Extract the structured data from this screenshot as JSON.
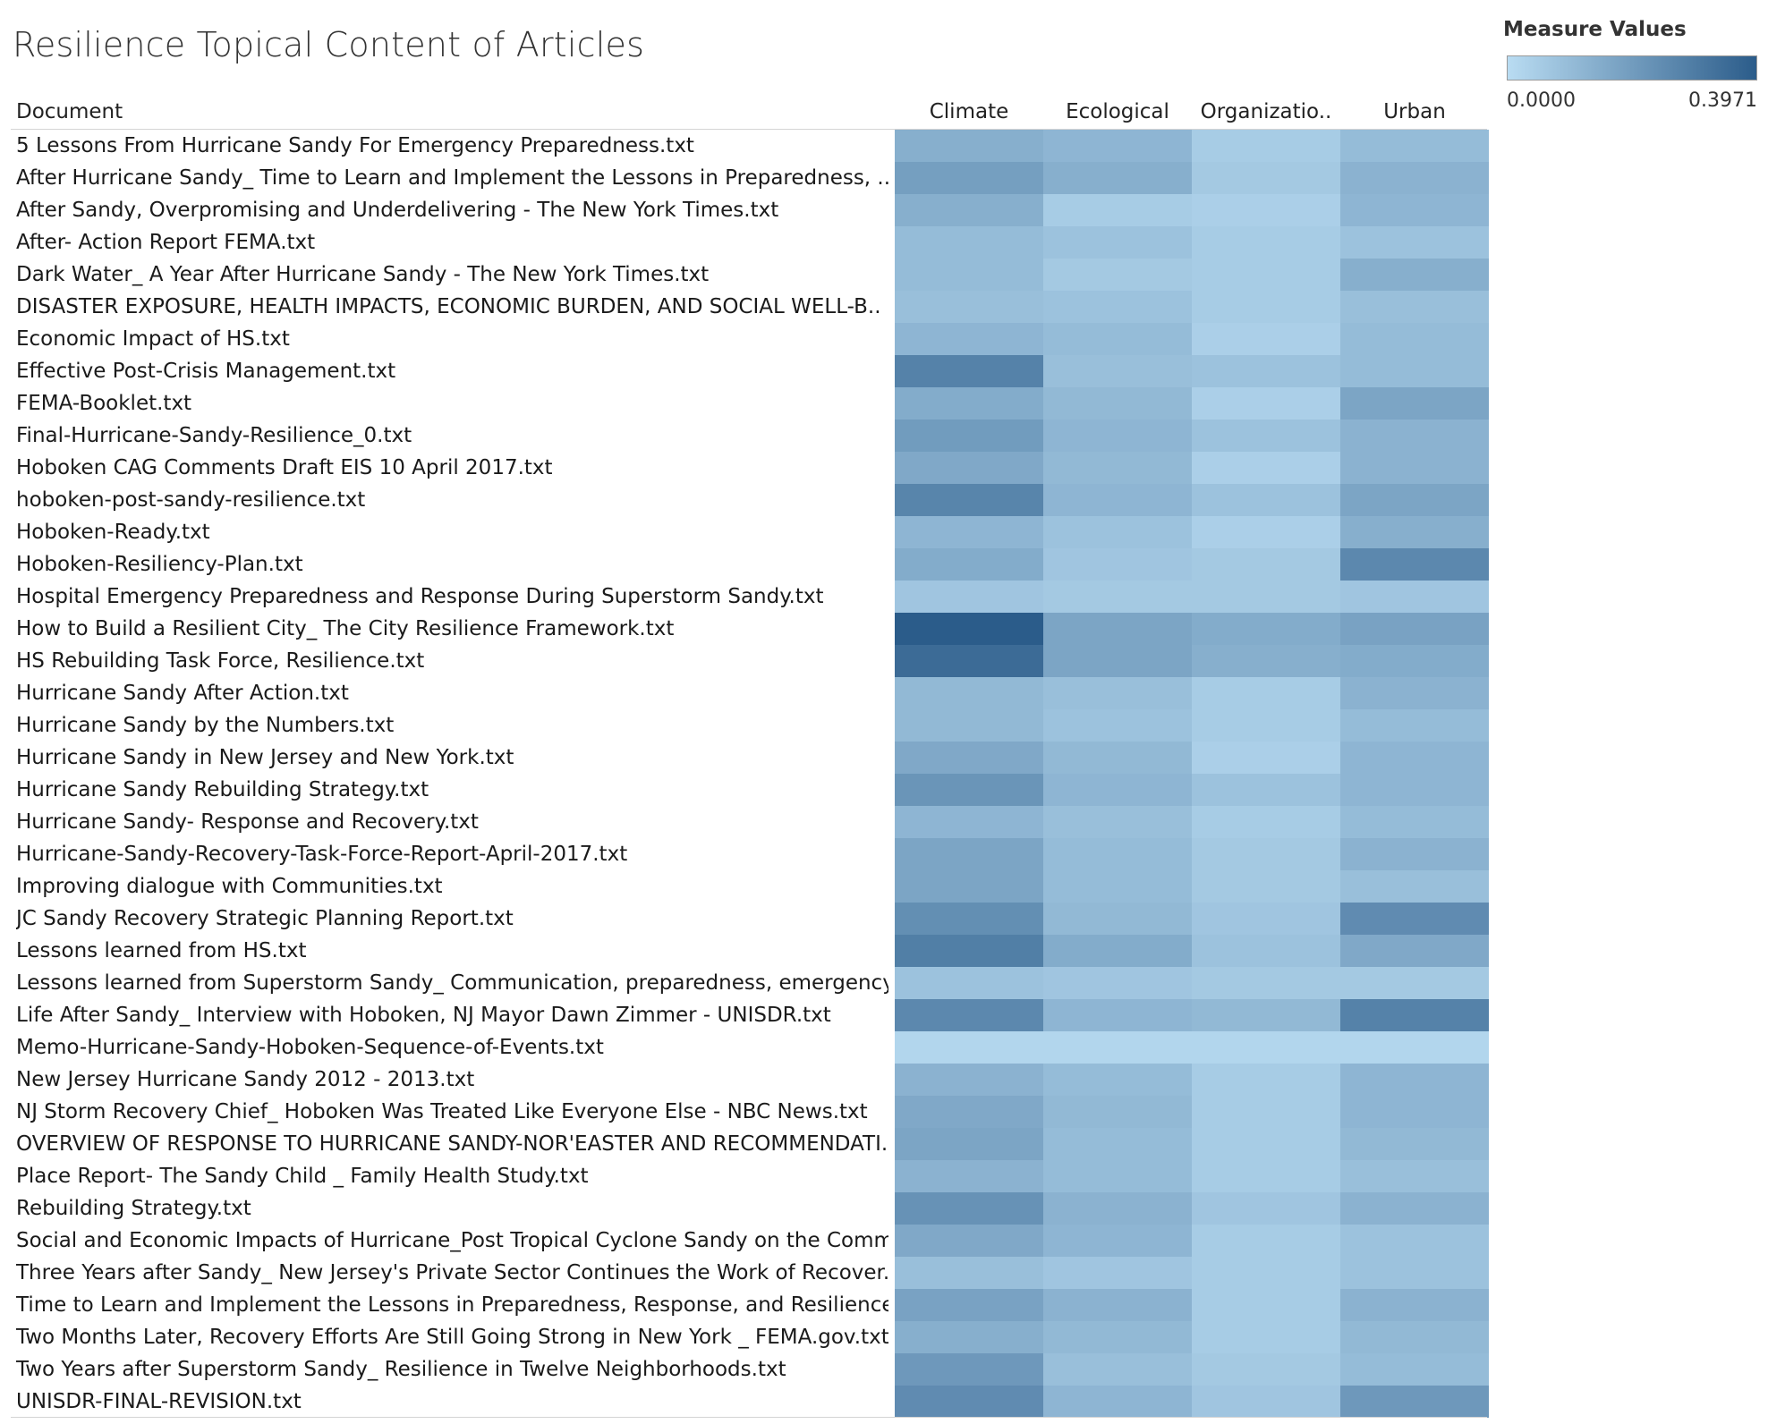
{
  "chart_data": {
    "type": "heatmap",
    "title": "Resilience Topical Content of Articles",
    "row_header": "Document",
    "columns": [
      "Climate",
      "Ecological",
      "Organizatio..",
      "Urban"
    ],
    "legend": {
      "title": "Measure Values",
      "min_label": "0.0000",
      "max_label": "0.3971",
      "min": 0.0,
      "max": 0.3971,
      "color_low": "#b9dcf2",
      "color_high": "#2b5c8a",
      "placement": "top-right"
    },
    "rows": [
      {
        "label": "5 Lessons From Hurricane Sandy For Emergency Preparedness.txt",
        "values": [
          0.14,
          0.12,
          0.05,
          0.1
        ]
      },
      {
        "label": "After Hurricane Sandy_ Time to Learn and Implement the  Lessons in Preparedness,  ..",
        "values": [
          0.19,
          0.14,
          0.06,
          0.13
        ]
      },
      {
        "label": "After Sandy, Overpromising and Underdelivering - The New York Times.txt",
        "values": [
          0.14,
          0.05,
          0.04,
          0.12
        ]
      },
      {
        "label": "After- Action Report FEMA.txt",
        "values": [
          0.1,
          0.08,
          0.05,
          0.08
        ]
      },
      {
        "label": "Dark Water_ A Year After Hurricane Sandy - The New York Times.txt",
        "values": [
          0.1,
          0.06,
          0.05,
          0.14
        ]
      },
      {
        "label": "DISASTER EXPOSURE,  HEALTH IMPACTS,  ECONOMIC BURDEN,  AND SOCIAL  WELL-B..",
        "values": [
          0.09,
          0.08,
          0.05,
          0.09
        ]
      },
      {
        "label": "Economic Impact of HS.txt",
        "values": [
          0.12,
          0.1,
          0.04,
          0.1
        ]
      },
      {
        "label": "Effective Post-Crisis Management.txt",
        "values": [
          0.28,
          0.09,
          0.08,
          0.1
        ]
      },
      {
        "label": "FEMA-Booklet.txt",
        "values": [
          0.15,
          0.11,
          0.04,
          0.17
        ]
      },
      {
        "label": "Final-Hurricane-Sandy-Resilience_0.txt",
        "values": [
          0.2,
          0.12,
          0.08,
          0.13
        ]
      },
      {
        "label": "Hoboken CAG Comments Draft EIS 10 April 2017.txt",
        "values": [
          0.16,
          0.11,
          0.04,
          0.13
        ]
      },
      {
        "label": "hoboken-post-sandy-resilience.txt",
        "values": [
          0.27,
          0.12,
          0.08,
          0.17
        ]
      },
      {
        "label": "Hoboken-Ready.txt",
        "values": [
          0.12,
          0.08,
          0.04,
          0.14
        ]
      },
      {
        "label": "Hoboken-Resiliency-Plan.txt",
        "values": [
          0.15,
          0.07,
          0.06,
          0.26
        ]
      },
      {
        "label": "Hospital Emergency Preparedness and Response During Superstorm Sandy.txt",
        "values": [
          0.07,
          0.06,
          0.06,
          0.07
        ]
      },
      {
        "label": "How to Build a Resilient City_ The  City Resilience Framework.txt",
        "values": [
          0.3971,
          0.17,
          0.15,
          0.18
        ]
      },
      {
        "label": "HS Rebuilding Task Force, Resilience.txt",
        "values": [
          0.35,
          0.17,
          0.14,
          0.15
        ]
      },
      {
        "label": "Hurricane Sandy After Action.txt",
        "values": [
          0.11,
          0.09,
          0.05,
          0.13
        ]
      },
      {
        "label": "Hurricane Sandy by the Numbers.txt",
        "values": [
          0.11,
          0.08,
          0.05,
          0.1
        ]
      },
      {
        "label": "Hurricane Sandy in  New Jersey and New York.txt",
        "values": [
          0.16,
          0.11,
          0.04,
          0.12
        ]
      },
      {
        "label": "Hurricane Sandy Rebuilding Strategy.txt",
        "values": [
          0.22,
          0.12,
          0.08,
          0.12
        ]
      },
      {
        "label": "Hurricane Sandy- Response and Recovery.txt",
        "values": [
          0.12,
          0.09,
          0.05,
          0.1
        ]
      },
      {
        "label": "Hurricane-Sandy-Recovery-Task-Force-Report-April-2017.txt",
        "values": [
          0.17,
          0.1,
          0.06,
          0.13
        ]
      },
      {
        "label": "Improving dialogue with Communities.txt",
        "values": [
          0.17,
          0.1,
          0.06,
          0.09
        ]
      },
      {
        "label": "JC Sandy Recovery Strategic Planning Report.txt",
        "values": [
          0.24,
          0.11,
          0.07,
          0.25
        ]
      },
      {
        "label": "Lessons learned from HS.txt",
        "values": [
          0.29,
          0.15,
          0.08,
          0.16
        ]
      },
      {
        "label": "Lessons learned from Superstorm Sandy_ Communication, preparedness, emergency ..",
        "values": [
          0.08,
          0.07,
          0.06,
          0.06
        ]
      },
      {
        "label": "Life After Sandy_ Interview with Hoboken, NJ Mayor Dawn Zimmer - UNISDR.txt",
        "values": [
          0.26,
          0.12,
          0.11,
          0.28
        ]
      },
      {
        "label": "Memo-Hurricane-Sandy-Hoboken-Sequence-of-Events.txt",
        "values": [
          0.02,
          0.02,
          0.02,
          0.02
        ]
      },
      {
        "label": "New Jersey Hurricane Sandy  2012 - 2013.txt",
        "values": [
          0.13,
          0.1,
          0.05,
          0.12
        ]
      },
      {
        "label": "NJ Storm Recovery Chief_ Hoboken Was Treated Like Everyone Else - NBC News.txt",
        "values": [
          0.16,
          0.11,
          0.05,
          0.12
        ]
      },
      {
        "label": "OVERVIEW OF RESPONSE TO HURRICANE SANDY-NOR'EASTER AND RECOMMENDATI..",
        "values": [
          0.17,
          0.1,
          0.05,
          0.11
        ]
      },
      {
        "label": "Place Report- The Sandy Child _ Family Health Study.txt",
        "values": [
          0.13,
          0.1,
          0.05,
          0.09
        ]
      },
      {
        "label": "Rebuilding Strategy.txt",
        "values": [
          0.23,
          0.13,
          0.07,
          0.13
        ]
      },
      {
        "label": "Social and Economic Impacts of Hurricane_Post  Tropical Cyclone Sandy on the Comm..",
        "values": [
          0.16,
          0.12,
          0.05,
          0.08
        ]
      },
      {
        "label": "Three Years after Sandy_ New Jersey's Private Sector Continues the Work of Recover..",
        "values": [
          0.09,
          0.07,
          0.05,
          0.08
        ]
      },
      {
        "label": "Time to Learn and Implement the Lessons in Preparedness, Response, and Resilience...",
        "values": [
          0.18,
          0.13,
          0.05,
          0.13
        ]
      },
      {
        "label": "Two Months Later, Recovery Efforts Are Still Going Strong in New York _ FEMA.gov.txt",
        "values": [
          0.14,
          0.11,
          0.05,
          0.11
        ]
      },
      {
        "label": "Two Years after Superstorm  Sandy_ Resilience in Twelve  Neighborhoods.txt",
        "values": [
          0.21,
          0.09,
          0.06,
          0.1
        ]
      },
      {
        "label": "UNISDR-FINAL-REVISION.txt",
        "values": [
          0.25,
          0.12,
          0.07,
          0.21
        ]
      }
    ]
  }
}
